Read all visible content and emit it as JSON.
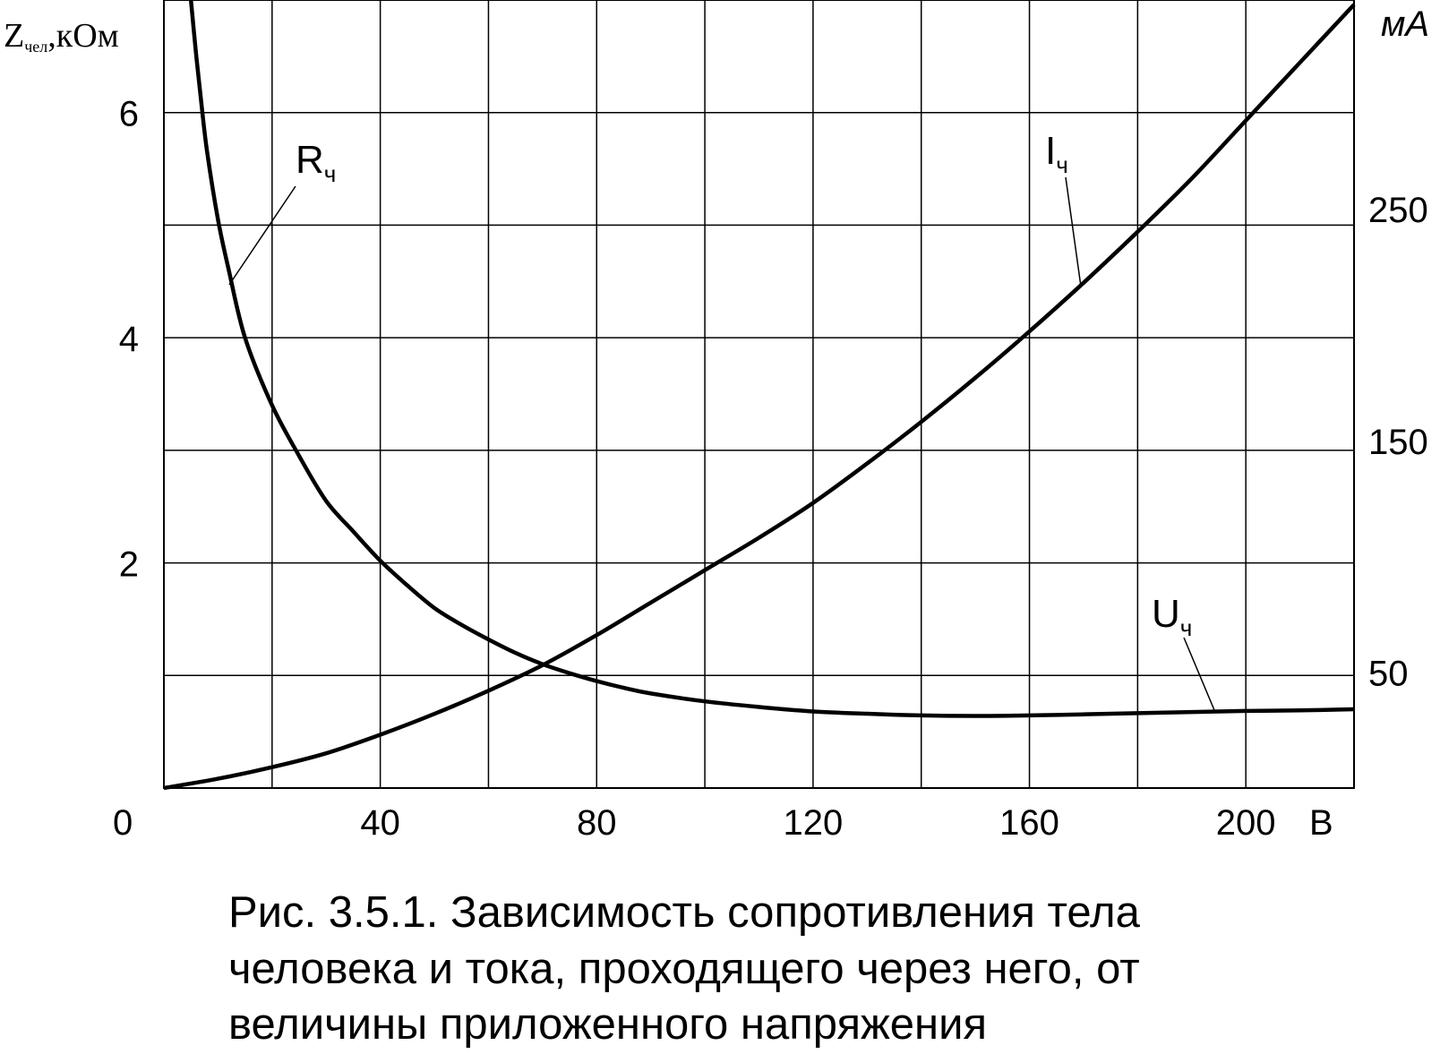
{
  "chart_data": {
    "type": "line",
    "title": "",
    "caption_lines": [
      "Рис. 3.5.1. Зависимость сопротивления тела",
      "человека и тока, проходящего через него, от",
      "величины приложенного напряжения"
    ],
    "xlabel": "В",
    "ylabel_left": {
      "main": "Z",
      "sub": "чел",
      "unit": ",кОм"
    },
    "ylabel_right": "мА",
    "origin_label": "0",
    "xlim": [
      0,
      220
    ],
    "x_ticks": [
      40,
      80,
      120,
      160,
      200
    ],
    "x_gridlines": [
      20,
      40,
      60,
      80,
      100,
      120,
      140,
      160,
      180,
      200,
      220
    ],
    "ylim_left": [
      0,
      7
    ],
    "y_left_ticks": [
      2,
      4,
      6
    ],
    "y_left_gridlines": [
      1,
      2,
      3,
      4,
      5,
      6
    ],
    "ylim_right": [
      0,
      340
    ],
    "y_right_ticks": [
      50,
      150,
      250
    ],
    "grid": true,
    "series": [
      {
        "name": "R",
        "sub": "ч",
        "axis": "left",
        "x": [
          5,
          6,
          7,
          8,
          10,
          12,
          15,
          20,
          25,
          30,
          35,
          40,
          45,
          50,
          55,
          60,
          65,
          70,
          75,
          80,
          85,
          90,
          100,
          110,
          120,
          130,
          140,
          150,
          160,
          170,
          180,
          190,
          200,
          210,
          220
        ],
        "y": [
          7.0,
          6.5,
          6.05,
          5.65,
          5.05,
          4.6,
          4.0,
          3.4,
          2.95,
          2.55,
          2.28,
          2.02,
          1.8,
          1.6,
          1.45,
          1.32,
          1.2,
          1.1,
          1.02,
          0.95,
          0.89,
          0.84,
          0.77,
          0.72,
          0.68,
          0.66,
          0.645,
          0.64,
          0.645,
          0.655,
          0.665,
          0.675,
          0.685,
          0.69,
          0.7
        ]
      },
      {
        "name": "I",
        "sub": "ч",
        "axis": "right",
        "x": [
          0,
          10,
          20,
          30,
          40,
          50,
          60,
          70,
          80,
          90,
          100,
          110,
          120,
          130,
          140,
          150,
          160,
          170,
          180,
          190,
          200,
          210,
          220
        ],
        "y": [
          0,
          4,
          9,
          15,
          23,
          32,
          42,
          53,
          66,
          80,
          94,
          108,
          123,
          140,
          158,
          177,
          197,
          218,
          240,
          263,
          288,
          313,
          338
        ]
      },
      {
        "name": "U",
        "sub": "ч",
        "axis": "left",
        "x": [],
        "y": []
      }
    ]
  }
}
